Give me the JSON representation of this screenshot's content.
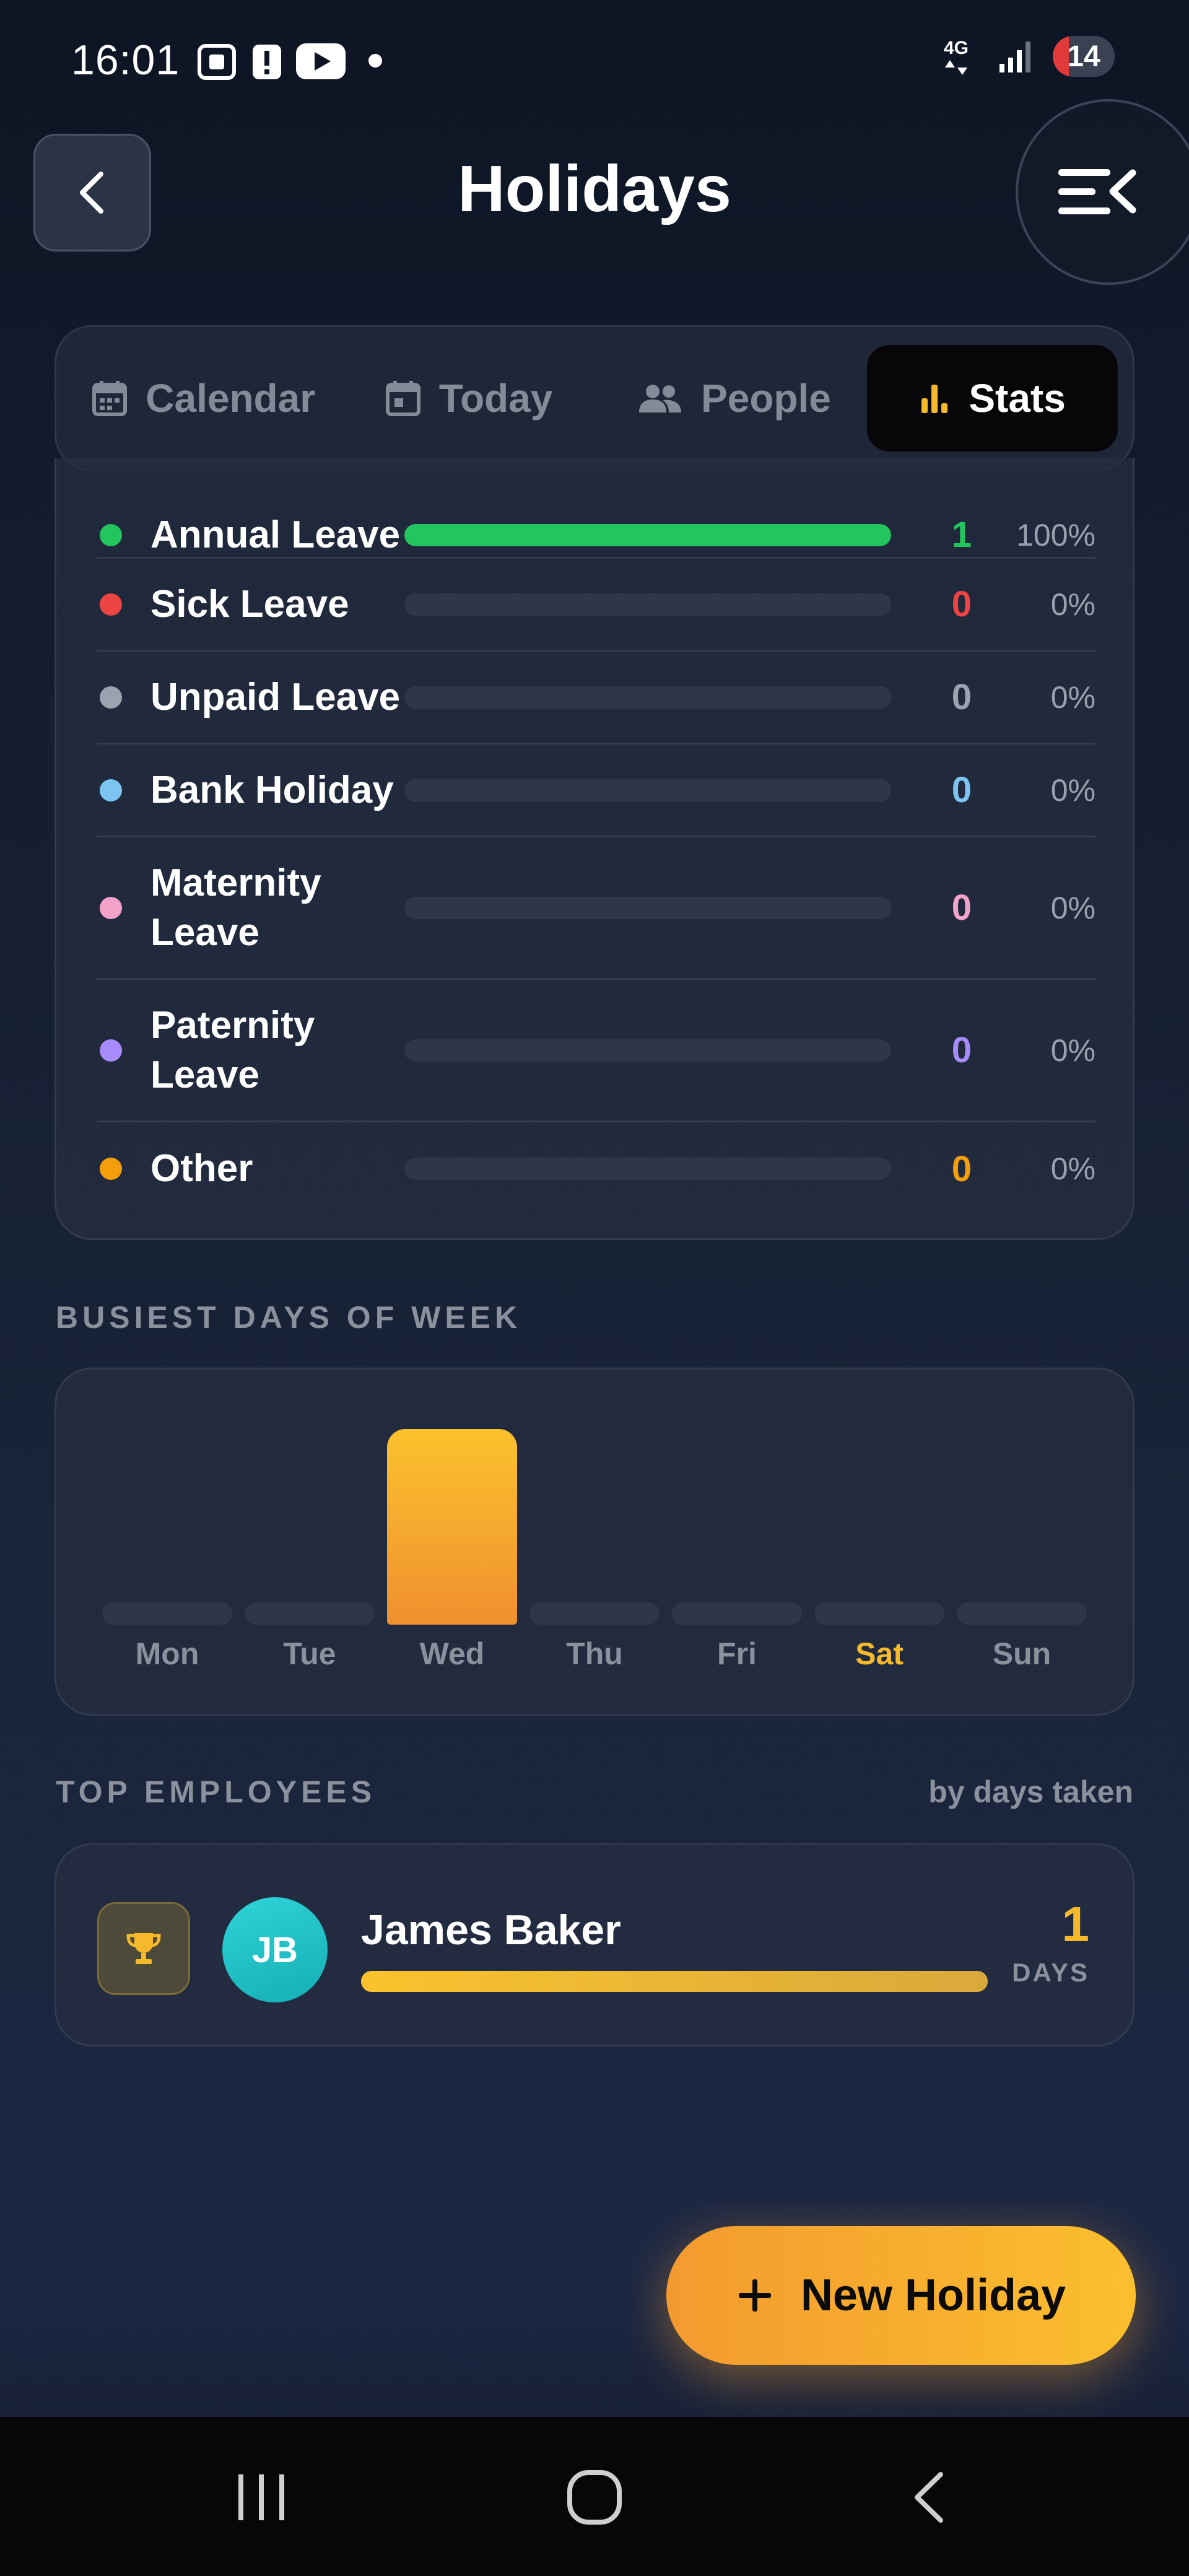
{
  "status_bar": {
    "time": "16:01",
    "network": "4G",
    "battery": "14"
  },
  "header": {
    "title": "Holidays"
  },
  "tabs": [
    {
      "label": "Calendar",
      "icon": "calendar-icon",
      "active": false
    },
    {
      "label": "Today",
      "icon": "calendar-day-icon",
      "active": false
    },
    {
      "label": "People",
      "icon": "people-icon",
      "active": false
    },
    {
      "label": "Stats",
      "icon": "bar-chart-icon",
      "active": true
    }
  ],
  "leave_types": [
    {
      "label": "Annual Leave",
      "count": "1",
      "percent": "100%",
      "fill": 1.0,
      "color": "#22c55e"
    },
    {
      "label": "Sick Leave",
      "count": "0",
      "percent": "0%",
      "fill": 0,
      "color": "#ef4444"
    },
    {
      "label": "Unpaid Leave",
      "count": "0",
      "percent": "0%",
      "fill": 0,
      "color": "#9ca3af"
    },
    {
      "label": "Bank Holiday",
      "count": "0",
      "percent": "0%",
      "fill": 0,
      "color": "#7cc4f2"
    },
    {
      "label": "Maternity Leave",
      "count": "0",
      "percent": "0%",
      "fill": 0,
      "color": "#f3a3c9"
    },
    {
      "label": "Paternity Leave",
      "count": "0",
      "percent": "0%",
      "fill": 0,
      "color": "#a78bfa"
    },
    {
      "label": "Other",
      "count": "0",
      "percent": "0%",
      "fill": 0,
      "color": "#f59e0b"
    }
  ],
  "busiest_days": {
    "heading": "BUSIEST DAYS OF WEEK",
    "highlight_color": "#f6b92b"
  },
  "chart_data": {
    "type": "bar",
    "categories": [
      "Mon",
      "Tue",
      "Wed",
      "Thu",
      "Fri",
      "Sat",
      "Sun"
    ],
    "values": [
      0,
      0,
      1,
      0,
      0,
      0,
      0
    ],
    "highlighted_category": "Sat",
    "ylim": [
      0,
      1
    ]
  },
  "top_employees": {
    "heading": "TOP EMPLOYEES",
    "subheading": "by days taken",
    "items": [
      {
        "initials": "JB",
        "name": "James Baker",
        "days": "1",
        "days_unit": "DAYS",
        "fill": 1.0
      }
    ]
  },
  "fab": {
    "label": "New Holiday"
  }
}
